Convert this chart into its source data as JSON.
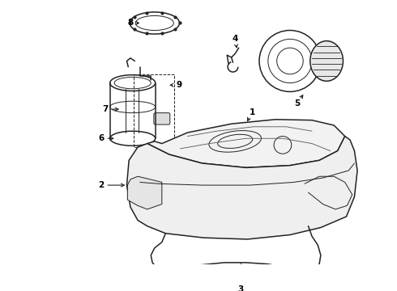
{
  "bg_color": "#ffffff",
  "line_color": "#222222",
  "figsize": [
    4.9,
    3.6
  ],
  "dpi": 100,
  "label_fontsize": 7.5
}
